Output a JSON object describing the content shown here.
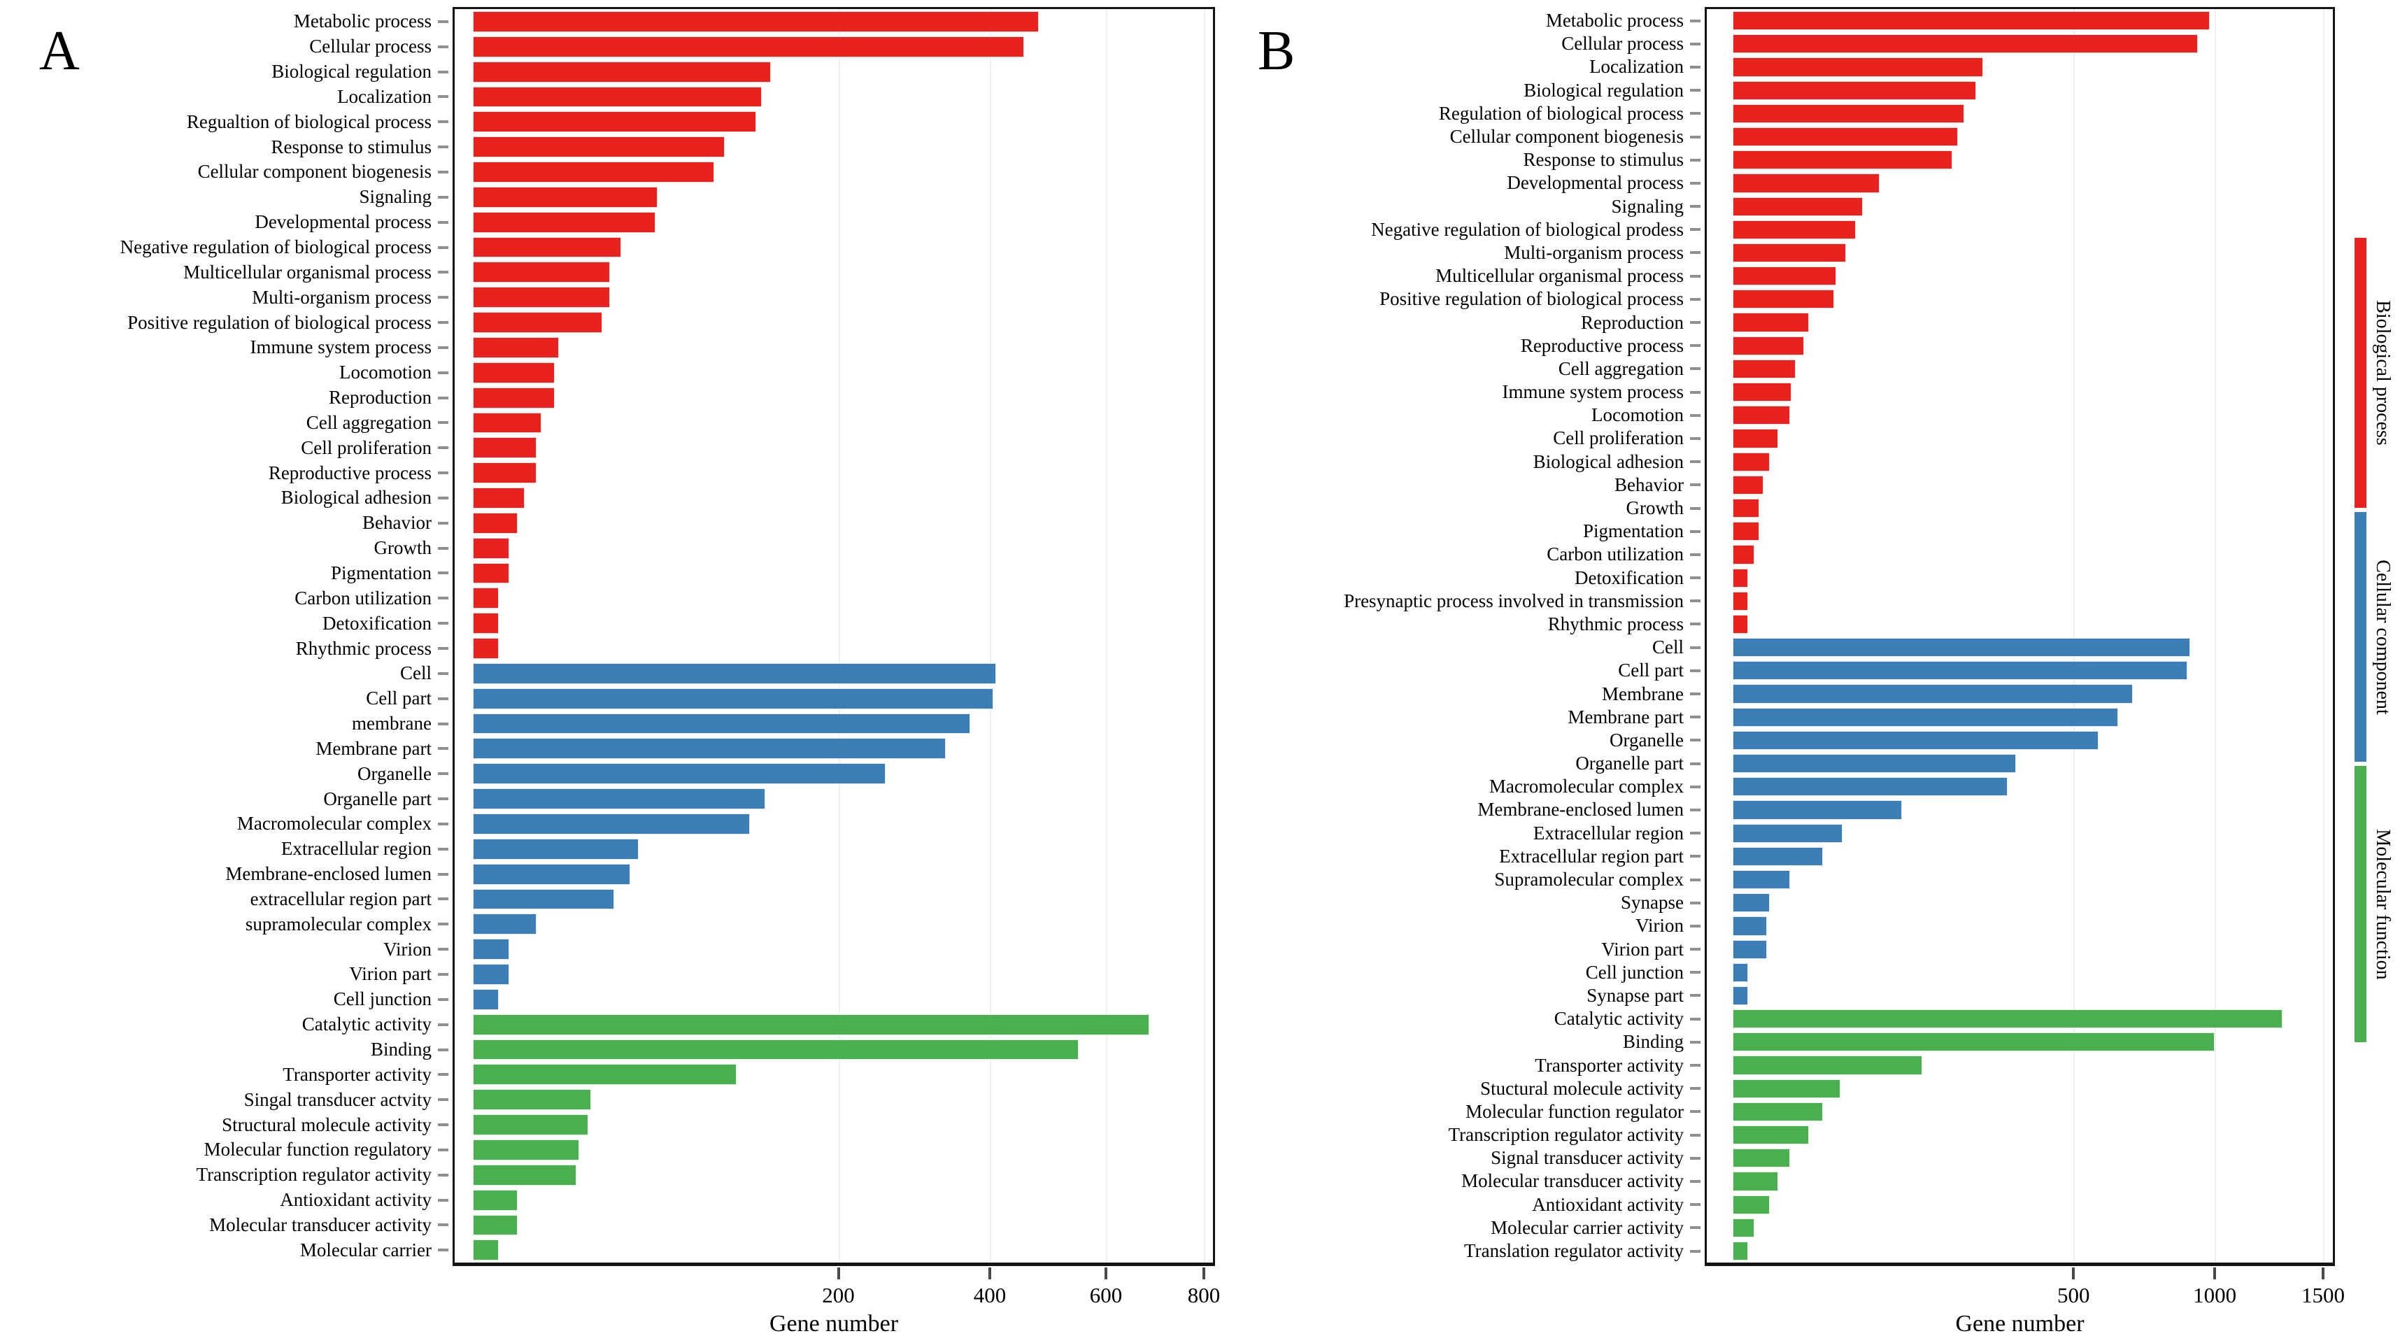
{
  "figure": {
    "panel_a_letter": "A",
    "panel_b_letter": "B",
    "xaxis_label": "Gene number"
  },
  "legend": {
    "items": [
      {
        "label": "Biological process",
        "color": "#e8231f"
      },
      {
        "label": "Cellular component",
        "color": "#3c7db6"
      },
      {
        "label": "Molecular function",
        "color": "#4caf4f"
      }
    ]
  },
  "chart_data": [
    {
      "type": "bar",
      "panel": "A",
      "orientation": "horizontal",
      "xlabel": "Gene number",
      "x_scale": "sqrt",
      "xticks": [
        200,
        400,
        600,
        800
      ],
      "xlim": [
        0,
        820
      ],
      "grid": "light-vertical-at-ticks",
      "legend_position": "right-outside",
      "series": [
        {
          "name": "Biological process",
          "color": "#e8231f",
          "categories": [
            "Metabolic process",
            "Cellular process",
            "Biological regulation",
            "Localization",
            "Regualtion of biological process",
            "Response to stimulus",
            "Cellular component biogenesis",
            "Signaling",
            "Developmental process",
            "Negative regulation of biological process",
            "Multicellular organismal process",
            "Multi-organism process",
            "Positive regulation of biological process",
            "Immune system process",
            "Locomotion",
            "Reproduction",
            "Cell aggregation",
            "Cell proliferation",
            "Reproductive process",
            "Biological adhesion",
            "Behavior",
            "Growth",
            "Pigmentation",
            "Carbon utilization",
            "Detoxification",
            "Rhythmic process"
          ],
          "values": [
            480,
            455,
            133,
            125,
            120,
            95,
            87,
            51,
            50,
            33,
            28,
            28,
            25,
            11,
            10,
            10,
            7,
            6,
            6,
            4,
            3,
            2,
            2,
            1,
            1,
            1
          ]
        },
        {
          "name": "Cellular component",
          "color": "#3c7db6",
          "categories": [
            "Cell",
            "Cell part",
            "membrane",
            "Membrane part",
            "Organelle",
            "Organelle part",
            "Macromolecular complex",
            "Extracellular region",
            "Membrane-enclosed lumen",
            "extracellular region part",
            "supramolecular complex",
            "Virion",
            "Virion part",
            "Cell junction"
          ],
          "values": [
            410,
            405,
            370,
            335,
            255,
            128,
            115,
            41,
            37,
            30,
            6,
            2,
            2,
            1
          ]
        },
        {
          "name": "Molecular function",
          "color": "#4caf4f",
          "categories": [
            "Catalytic activity",
            "Binding",
            "Transporter activity",
            "Singal transducer actvity",
            "Structural molecule activity",
            "Molecular function regulatory",
            "Transcription regulator activity",
            "Antioxidant activity",
            "Molecular transducer activity",
            "Molecular carrier"
          ],
          "values": [
            685,
            550,
            104,
            21,
            20,
            17,
            16,
            3,
            3,
            1
          ]
        }
      ]
    },
    {
      "type": "bar",
      "panel": "B",
      "orientation": "horizontal",
      "xlabel": "Gene number",
      "x_scale": "sqrt",
      "xticks": [
        500,
        1000,
        1500
      ],
      "xlim": [
        0,
        1550
      ],
      "grid": "light-vertical-at-ticks",
      "legend_position": "right-outside",
      "series": [
        {
          "name": "Biological process",
          "color": "#e8231f",
          "categories": [
            "Metabolic process",
            "Cellular process",
            "Localization",
            "Biological regulation",
            "Regulation of biological process",
            "Cellular component biogenesis",
            "Response to stimulus",
            "Developmental process",
            "Signaling",
            "Negative regulation of biological prodess",
            "Multi-organism process",
            "Multicellular organismal process",
            "Positive regulation of biological process",
            "Reproduction",
            "Reproductive process",
            "Cell aggregation",
            "Immune system process",
            "Locomotion",
            "Cell proliferation",
            "Biological adhesion",
            "Behavior",
            "Growth",
            "Pigmentation",
            "Carbon utilization",
            "Detoxification",
            "Presynaptic process involved in transmission",
            "Rhythmic process"
          ],
          "values": [
            980,
            930,
            270,
            255,
            230,
            218,
            208,
            93,
            73,
            65,
            55,
            46,
            44,
            25,
            22,
            17,
            15,
            14,
            9,
            6,
            4,
            3,
            3,
            2,
            1,
            1,
            1
          ]
        },
        {
          "name": "Cellular component",
          "color": "#3c7db6",
          "categories": [
            "Cell",
            "Cell part",
            "Membrane",
            "Membrane part",
            "Organelle",
            "Organelle part",
            "Macromolecular complex",
            "Membrane-enclosed lumen",
            "Extracellular region",
            "Extracellular region part",
            "Supramolecular complex",
            "Synapse",
            "Virion",
            "Virion part",
            "Cell junction",
            "Synapse part"
          ],
          "values": [
            900,
            890,
            690,
            640,
            575,
            345,
            325,
            123,
            52,
            35,
            14,
            6,
            5,
            5,
            1,
            1
          ]
        },
        {
          "name": "Molecular function",
          "color": "#4caf4f",
          "categories": [
            "Catalytic activity",
            "Binding",
            "Transporter activity",
            "Stuctural molecule activity",
            "Molecular function regulator",
            "Transcription regulator activity",
            "Signal transducer activity",
            "Molecular transducer activity",
            "Antioxidant activity",
            "Molecular carrier activity",
            "Translation regulator activity"
          ],
          "values": [
            1300,
            1000,
            155,
            50,
            35,
            25,
            14,
            9,
            6,
            2,
            1
          ]
        }
      ]
    }
  ]
}
